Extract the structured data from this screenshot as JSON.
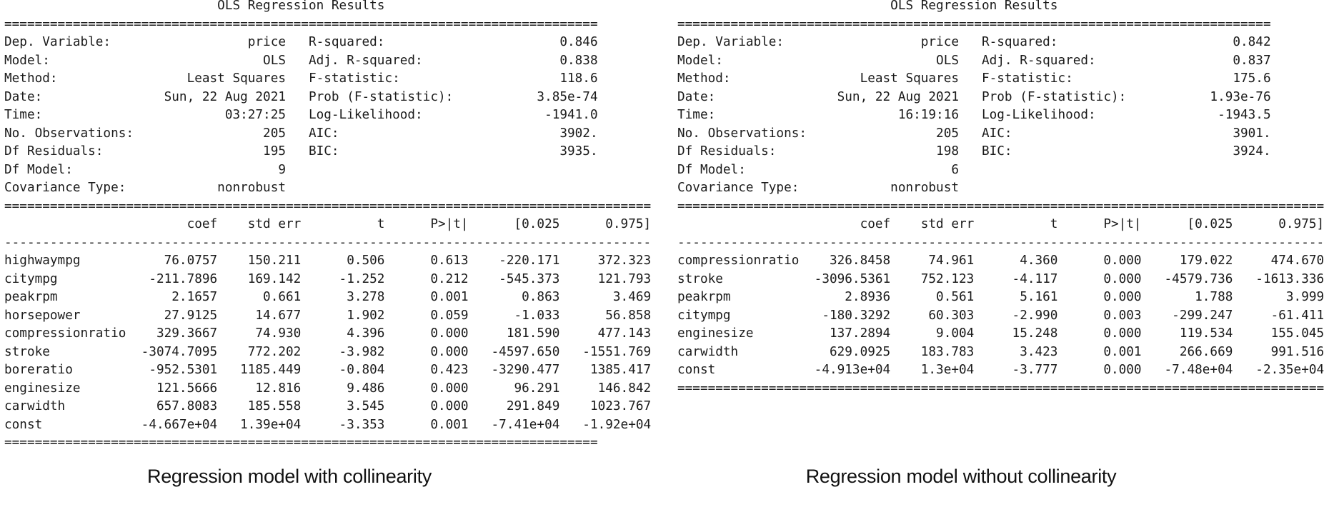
{
  "page": {
    "background": "#ffffff",
    "text_color": "#1b1b1b"
  },
  "captions": {
    "left": "Regression model with collinearity",
    "right": "Regression model without collinearity"
  },
  "tables": [
    {
      "id": "with-collinearity",
      "title": "OLS Regression Results",
      "info": [
        {
          "l": "Dep. Variable:",
          "lv": "price",
          "r": "R-squared:",
          "rv": "0.846"
        },
        {
          "l": "Model:",
          "lv": "OLS",
          "r": "Adj. R-squared:",
          "rv": "0.838"
        },
        {
          "l": "Method:",
          "lv": "Least Squares",
          "r": "F-statistic:",
          "rv": "118.6"
        },
        {
          "l": "Date:",
          "lv": "Sun, 22 Aug 2021",
          "r": "Prob (F-statistic):",
          "rv": "3.85e-74"
        },
        {
          "l": "Time:",
          "lv": "03:27:25",
          "r": "Log-Likelihood:",
          "rv": "-1941.0"
        },
        {
          "l": "No. Observations:",
          "lv": "205",
          "r": "AIC:",
          "rv": "3902."
        },
        {
          "l": "Df Residuals:",
          "lv": "195",
          "r": "BIC:",
          "rv": "3935."
        },
        {
          "l": "Df Model:",
          "lv": "9",
          "r": "",
          "rv": ""
        },
        {
          "l": "Covariance Type:",
          "lv": "nonrobust",
          "r": "",
          "rv": ""
        }
      ],
      "coef_header": [
        "coef",
        "std err",
        "t",
        "P>|t|",
        "[0.025",
        "0.975]"
      ],
      "rows": [
        [
          "highwaympg",
          "76.0757",
          "150.211",
          "0.506",
          "0.613",
          "-220.171",
          "372.323"
        ],
        [
          "citympg",
          "-211.7896",
          "169.142",
          "-1.252",
          "0.212",
          "-545.373",
          "121.793"
        ],
        [
          "peakrpm",
          "2.1657",
          "0.661",
          "3.278",
          "0.001",
          "0.863",
          "3.469"
        ],
        [
          "horsepower",
          "27.9125",
          "14.677",
          "1.902",
          "0.059",
          "-1.033",
          "56.858"
        ],
        [
          "compressionratio",
          "329.3667",
          "74.930",
          "4.396",
          "0.000",
          "181.590",
          "477.143"
        ],
        [
          "stroke",
          "-3074.7095",
          "772.202",
          "-3.982",
          "0.000",
          "-4597.650",
          "-1551.769"
        ],
        [
          "boreratio",
          "-952.5301",
          "1185.449",
          "-0.804",
          "0.423",
          "-3290.477",
          "1385.417"
        ],
        [
          "enginesize",
          "121.5666",
          "12.816",
          "9.486",
          "0.000",
          "96.291",
          "146.842"
        ],
        [
          "carwidth",
          "657.8083",
          "185.558",
          "3.545",
          "0.000",
          "291.849",
          "1023.767"
        ],
        [
          "const",
          "-4.667e+04",
          "1.39e+04",
          "-3.353",
          "0.001",
          "-7.41e+04",
          "-1.92e+04"
        ]
      ],
      "bottom_rule_chars": 78
    },
    {
      "id": "without-collinearity",
      "title": "OLS Regression Results",
      "info": [
        {
          "l": "Dep. Variable:",
          "lv": "price",
          "r": "R-squared:",
          "rv": "0.842"
        },
        {
          "l": "Model:",
          "lv": "OLS",
          "r": "Adj. R-squared:",
          "rv": "0.837"
        },
        {
          "l": "Method:",
          "lv": "Least Squares",
          "r": "F-statistic:",
          "rv": "175.6"
        },
        {
          "l": "Date:",
          "lv": "Sun, 22 Aug 2021",
          "r": "Prob (F-statistic):",
          "rv": "1.93e-76"
        },
        {
          "l": "Time:",
          "lv": "16:19:16",
          "r": "Log-Likelihood:",
          "rv": "-1943.5"
        },
        {
          "l": "No. Observations:",
          "lv": "205",
          "r": "AIC:",
          "rv": "3901."
        },
        {
          "l": "Df Residuals:",
          "lv": "198",
          "r": "BIC:",
          "rv": "3924."
        },
        {
          "l": "Df Model:",
          "lv": "6",
          "r": "",
          "rv": ""
        },
        {
          "l": "Covariance Type:",
          "lv": "nonrobust",
          "r": "",
          "rv": ""
        }
      ],
      "coef_header": [
        "coef",
        "std err",
        "t",
        "P>|t|",
        "[0.025",
        "0.975]"
      ],
      "rows": [
        [
          "compressionratio",
          "326.8458",
          "74.961",
          "4.360",
          "0.000",
          "179.022",
          "474.670"
        ],
        [
          "stroke",
          "-3096.5361",
          "752.123",
          "-4.117",
          "0.000",
          "-4579.736",
          "-1613.336"
        ],
        [
          "peakrpm",
          "2.8936",
          "0.561",
          "5.161",
          "0.000",
          "1.788",
          "3.999"
        ],
        [
          "citympg",
          "-180.3292",
          "60.303",
          "-2.990",
          "0.003",
          "-299.247",
          "-61.411"
        ],
        [
          "enginesize",
          "137.2894",
          "9.004",
          "15.248",
          "0.000",
          "119.534",
          "155.045"
        ],
        [
          "carwidth",
          "629.0925",
          "183.783",
          "3.423",
          "0.001",
          "266.669",
          "991.516"
        ],
        [
          "const",
          "-4.913e+04",
          "1.3e+04",
          "-3.777",
          "0.000",
          "-7.48e+04",
          "-2.35e+04"
        ]
      ],
      "bottom_rule_chars": 85
    }
  ]
}
